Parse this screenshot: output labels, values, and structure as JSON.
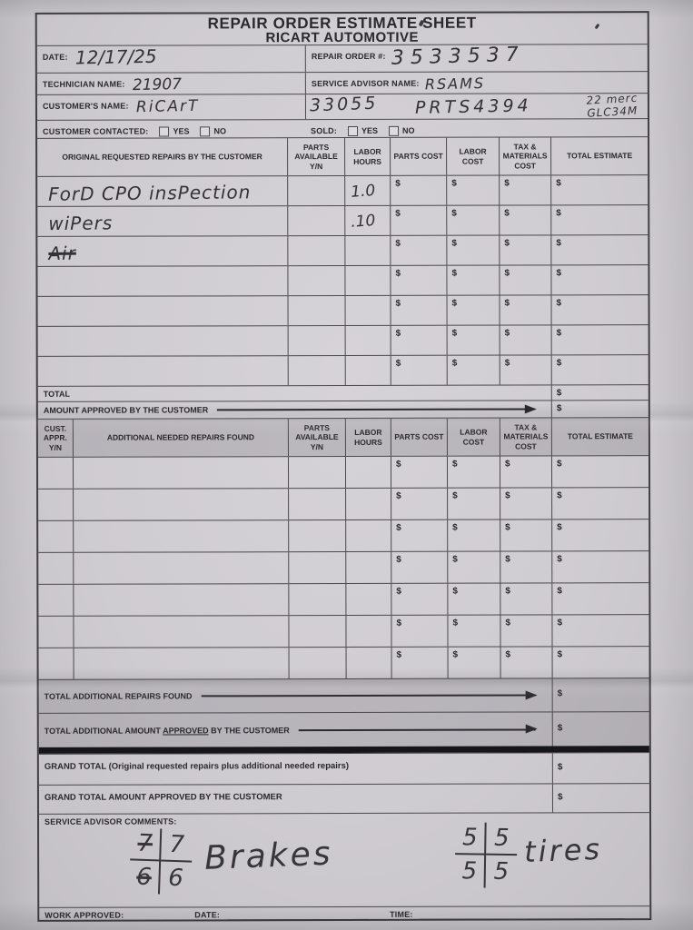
{
  "misc": {
    "dollar": "$"
  },
  "header": {
    "title_line1": "REPAIR ORDER ESTIMATE SHEET",
    "title_line2": "RICART AUTOMOTIVE",
    "date_label": "DATE:",
    "date_value": "12/17/25",
    "repair_order_label": "REPAIR ORDER #:",
    "repair_order_value": "3533537",
    "technician_label": "TECHNICIAN NAME:",
    "technician_value": "21907",
    "advisor_label": "SERVICE ADVISOR NAME:",
    "advisor_value": "RSAMS",
    "customer_label": "CUSTOMER'S NAME:",
    "customer_value": "RiCArT",
    "stock_number": "33055",
    "parts_tag": "PRTS4394",
    "vehicle_note_line1": "22 merc",
    "vehicle_note_line2": "GLC34M",
    "contacted_label": "CUSTOMER CONTACTED:",
    "sold_label": "SOLD:",
    "yes_label": "YES",
    "no_label": "NO"
  },
  "original_table": {
    "columns": [
      "ORIGINAL REQUESTED REPAIRS BY THE CUSTOMER",
      "PARTS\nAVAILABLE\nY/N",
      "LABOR\nHOURS",
      "PARTS COST",
      "LABOR COST",
      "TAX &\nMATERIALS\nCOST",
      "TOTAL ESTIMATE"
    ],
    "rows": [
      {
        "description": "ForD CPO insPection",
        "labor_hours": "1.0",
        "struck": false
      },
      {
        "description": "wiPers",
        "labor_hours": ".10",
        "struck": false
      },
      {
        "description": "Air",
        "labor_hours": "",
        "struck": true
      },
      {
        "description": "",
        "labor_hours": "",
        "struck": false
      },
      {
        "description": "",
        "labor_hours": "",
        "struck": false
      },
      {
        "description": "",
        "labor_hours": "",
        "struck": false
      },
      {
        "description": "",
        "labor_hours": "",
        "struck": false
      }
    ],
    "total_label": "TOTAL",
    "approved_label": "AMOUNT APPROVED BY THE CUSTOMER"
  },
  "additional_table": {
    "columns": [
      "CUST.\nAPPR.\nY/N",
      "ADDITIONAL NEEDED REPAIRS FOUND",
      "PARTS\nAVAILABLE\nY/N",
      "LABOR\nHOURS",
      "PARTS COST",
      "LABOR COST",
      "TAX &\nMATERIALS\nCOST",
      "TOTAL ESTIMATE"
    ],
    "row_count": 7,
    "total_label": "TOTAL ADDITIONAL REPAIRS FOUND",
    "approved_prefix": "TOTAL ADDITIONAL AMOUNT ",
    "approved_word": "APPROVED",
    "approved_suffix": " BY THE CUSTOMER"
  },
  "grand": {
    "total_label": "GRAND TOTAL (Original requested repairs plus additional needed repairs)",
    "approved_label": "GRAND TOTAL AMOUNT APPROVED BY THE CUSTOMER"
  },
  "comments": {
    "label": "SERVICE ADVISOR COMMENTS:",
    "brakes": {
      "top_left": "7",
      "top_right": "7",
      "bottom_left": "6",
      "bottom_right": "6",
      "caption": "Brakes"
    },
    "tires": {
      "top_left": "5",
      "top_right": "5",
      "bottom_left": "5",
      "bottom_right": "5",
      "caption": "tires"
    }
  },
  "footer": {
    "work_approved_label": "WORK APPROVED:",
    "date_label": "DATE:",
    "time_label": "TIME:"
  }
}
